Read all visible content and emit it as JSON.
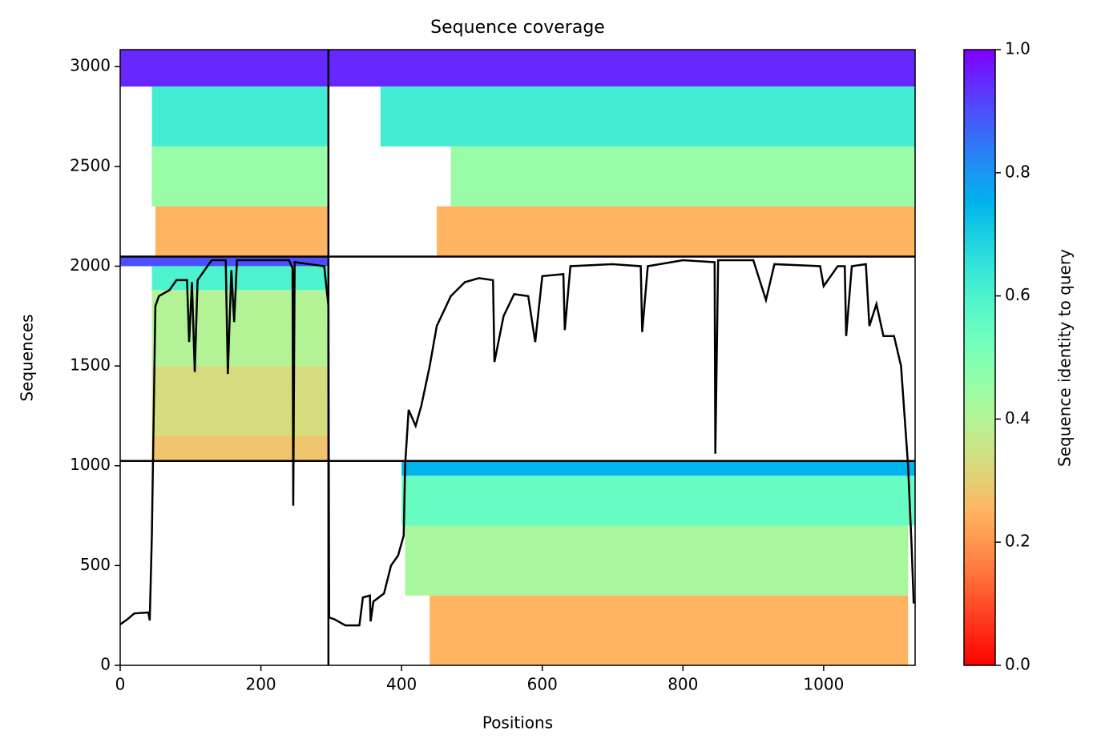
{
  "chart_data": {
    "type": "coverage",
    "title": "Sequence coverage",
    "x_label": "Positions",
    "y_label": "Sequences",
    "colorbar_label": "Sequence identity to query",
    "xlim": [
      0,
      1130
    ],
    "ylim": [
      0,
      3085
    ],
    "xticks": [
      0,
      200,
      400,
      600,
      800,
      1000
    ],
    "yticks": [
      0,
      500,
      1000,
      1500,
      2000,
      2500,
      3000
    ],
    "colorbar_lim": [
      0,
      1
    ],
    "colorbar_ticks": [
      {
        "value": 0,
        "label": "0.0"
      },
      {
        "value": 0.2,
        "label": "0.2"
      },
      {
        "value": 0.4,
        "label": "0.4"
      },
      {
        "value": 0.6,
        "label": "0.6"
      },
      {
        "value": 0.8,
        "label": "0.8"
      },
      {
        "value": 1,
        "label": "1.0"
      }
    ],
    "colormap": "rainbow_r",
    "chain_boundaries_x": [
      296
    ],
    "row_boundaries_y": [
      1024,
      2048
    ],
    "bands": [
      {
        "x": [
          0,
          1130
        ],
        "rows": [
          2900,
          3085
        ],
        "identity": 0.95
      },
      {
        "x": [
          45,
          296
        ],
        "rows": [
          2600,
          2900
        ],
        "identity": 0.62
      },
      {
        "x": [
          370,
          1130
        ],
        "rows": [
          2600,
          2900
        ],
        "identity": 0.62
      },
      {
        "x": [
          45,
          296
        ],
        "rows": [
          2300,
          2600
        ],
        "identity": 0.45
      },
      {
        "x": [
          470,
          1130
        ],
        "rows": [
          2300,
          2600
        ],
        "identity": 0.45
      },
      {
        "x": [
          50,
          296
        ],
        "rows": [
          2048,
          2300
        ],
        "identity": 0.25
      },
      {
        "x": [
          450,
          1130
        ],
        "rows": [
          2048,
          2300
        ],
        "identity": 0.25
      },
      {
        "x": [
          0,
          296
        ],
        "rows": [
          2000,
          2048
        ],
        "identity": 0.9
      },
      {
        "x": [
          45,
          296
        ],
        "rows": [
          1880,
          2000
        ],
        "identity": 0.6
      },
      {
        "x": [
          45,
          296
        ],
        "rows": [
          1500,
          1880
        ],
        "identity": 0.4
      },
      {
        "x": [
          45,
          296
        ],
        "rows": [
          1150,
          1500
        ],
        "identity": 0.33
      },
      {
        "x": [
          45,
          296
        ],
        "rows": [
          1024,
          1150
        ],
        "identity": 0.28
      },
      {
        "x": [
          400,
          1130
        ],
        "rows": [
          950,
          1024
        ],
        "identity": 0.75
      },
      {
        "x": [
          400,
          1130
        ],
        "rows": [
          700,
          950
        ],
        "identity": 0.55
      },
      {
        "x": [
          405,
          1120
        ],
        "rows": [
          350,
          700
        ],
        "identity": 0.42
      },
      {
        "x": [
          440,
          1120
        ],
        "rows": [
          0,
          350
        ],
        "identity": 0.25
      }
    ],
    "coverage": {
      "x": [
        0,
        10,
        20,
        40,
        42,
        45,
        50,
        55,
        65,
        70,
        80,
        95,
        98,
        102,
        106,
        110,
        130,
        150,
        153,
        158,
        162,
        166,
        240,
        245,
        246,
        248,
        290,
        296,
        297,
        305,
        320,
        340,
        345,
        355,
        356,
        360,
        375,
        385,
        395,
        403,
        405,
        410,
        420,
        428,
        440,
        450,
        470,
        490,
        510,
        530,
        532,
        545,
        560,
        580,
        590,
        600,
        630,
        632,
        640,
        700,
        740,
        742,
        750,
        800,
        845,
        846,
        850,
        900,
        918,
        930,
        995,
        1000,
        1020,
        1030,
        1032,
        1040,
        1060,
        1065,
        1075,
        1085,
        1100,
        1110,
        1120,
        1125,
        1128
      ],
      "y": [
        205,
        230,
        260,
        265,
        225,
        650,
        1800,
        1850,
        1870,
        1880,
        1930,
        1930,
        1620,
        1920,
        1470,
        1930,
        2030,
        2030,
        1460,
        1980,
        1720,
        2030,
        2030,
        1990,
        800,
        2020,
        2000,
        1800,
        240,
        230,
        200,
        200,
        340,
        350,
        220,
        320,
        360,
        500,
        550,
        650,
        1000,
        1280,
        1200,
        1300,
        1500,
        1700,
        1850,
        1920,
        1940,
        1930,
        1520,
        1750,
        1860,
        1850,
        1620,
        1950,
        1960,
        1680,
        2000,
        2010,
        2000,
        1670,
        2000,
        2030,
        2020,
        1060,
        2030,
        2030,
        1830,
        2010,
        2000,
        1900,
        2000,
        2000,
        1650,
        2000,
        2010,
        1700,
        1810,
        1650,
        1650,
        1500,
        1000,
        600,
        310
      ],
      "color": "#000000"
    }
  }
}
